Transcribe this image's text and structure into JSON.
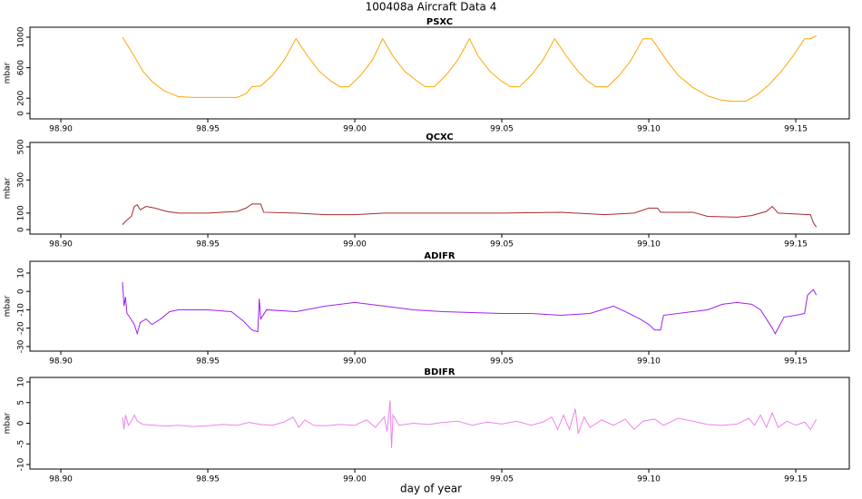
{
  "title": "100408a   Aircraft Data 4",
  "xlabel": "day of year",
  "chart_data": [
    {
      "type": "line",
      "title": "PSXC",
      "ylabel": "mbar",
      "xlim": [
        98.8895,
        99.1682
      ],
      "ylim": [
        -71,
        1131
      ],
      "xticks": [
        {
          "value": 98.9,
          "label": "98.90"
        },
        {
          "value": 98.95,
          "label": "98.95"
        },
        {
          "value": 99.0,
          "label": "99.00"
        },
        {
          "value": 99.05,
          "label": "99.05"
        },
        {
          "value": 99.1,
          "label": "99.10"
        },
        {
          "value": 99.15,
          "label": "99.15"
        }
      ],
      "yticks": [
        0,
        200,
        600,
        1000
      ],
      "series": [
        {
          "color": "#ffa500",
          "x": [
            98.921,
            98.925,
            98.928,
            98.931,
            98.935,
            98.94,
            98.945,
            98.955,
            98.96,
            98.963,
            98.965,
            98.968,
            98.972,
            98.976,
            98.98,
            98.984,
            98.988,
            98.992,
            98.995,
            98.998,
            99.002,
            99.006,
            99.0095,
            99.013,
            99.017,
            99.021,
            99.024,
            99.027,
            99.031,
            99.035,
            99.039,
            99.042,
            99.046,
            99.05,
            99.053,
            99.056,
            99.06,
            99.064,
            99.068,
            99.072,
            99.076,
            99.079,
            99.082,
            99.086,
            99.09,
            99.094,
            99.098,
            99.101,
            99.106,
            99.11,
            99.115,
            99.12,
            99.124,
            99.128,
            99.133,
            99.137,
            99.141,
            99.145,
            99.149,
            99.153,
            99.155,
            99.157
          ],
          "values": [
            1000,
            750,
            550,
            420,
            300,
            220,
            210,
            210,
            210,
            260,
            350,
            360,
            500,
            700,
            980,
            750,
            550,
            420,
            350,
            350,
            500,
            700,
            980,
            750,
            550,
            430,
            350,
            350,
            500,
            700,
            980,
            750,
            550,
            420,
            350,
            350,
            500,
            700,
            980,
            750,
            550,
            430,
            350,
            350,
            500,
            700,
            980,
            980,
            700,
            500,
            340,
            230,
            180,
            160,
            160,
            250,
            380,
            550,
            750,
            980,
            980,
            1020
          ]
        }
      ]
    },
    {
      "type": "line",
      "title": "QCXC",
      "ylabel": "mbar",
      "xlim": [
        98.8895,
        99.1682
      ],
      "ylim": [
        -27,
        527
      ],
      "xticks": [
        {
          "value": 98.9,
          "label": "98.90"
        },
        {
          "value": 98.95,
          "label": "98.95"
        },
        {
          "value": 99.0,
          "label": "99.00"
        },
        {
          "value": 99.05,
          "label": "99.05"
        },
        {
          "value": 99.1,
          "label": "99.10"
        },
        {
          "value": 99.15,
          "label": "99.15"
        }
      ],
      "yticks": [
        0,
        100,
        300,
        500
      ],
      "series": [
        {
          "color": "#a52a2a",
          "x": [
            98.921,
            98.922,
            98.924,
            98.925,
            98.926,
            98.927,
            98.929,
            98.932,
            98.936,
            98.94,
            98.95,
            98.96,
            98.963,
            98.965,
            98.968,
            98.969,
            98.98,
            98.99,
            99.0,
            99.01,
            99.05,
            99.07,
            99.085,
            99.095,
            99.1,
            99.103,
            99.104,
            99.115,
            99.12,
            99.13,
            99.135,
            99.14,
            99.142,
            99.144,
            99.155,
            99.156,
            99.157
          ],
          "values": [
            30,
            50,
            80,
            140,
            150,
            120,
            140,
            130,
            110,
            100,
            100,
            110,
            130,
            155,
            155,
            105,
            100,
            90,
            90,
            100,
            100,
            105,
            90,
            100,
            130,
            130,
            105,
            105,
            80,
            75,
            85,
            110,
            140,
            100,
            90,
            40,
            15
          ]
        }
      ]
    },
    {
      "type": "line",
      "title": "ADIFR",
      "ylabel": "mbar",
      "xlim": [
        98.8895,
        99.1682
      ],
      "ylim": [
        -32.5,
        16.4
      ],
      "xticks": [
        {
          "value": 98.9,
          "label": "98.90"
        },
        {
          "value": 98.95,
          "label": "98.95"
        },
        {
          "value": 99.0,
          "label": "99.00"
        },
        {
          "value": 99.05,
          "label": "99.05"
        },
        {
          "value": 99.1,
          "label": "99.10"
        },
        {
          "value": 99.15,
          "label": "99.15"
        }
      ],
      "yticks": [
        -30,
        -20,
        -10,
        0,
        10
      ],
      "series": [
        {
          "color": "#a020f0",
          "x": [
            98.921,
            98.9215,
            98.922,
            98.9225,
            98.923,
            98.925,
            98.926,
            98.927,
            98.929,
            98.931,
            98.934,
            98.937,
            98.94,
            98.95,
            98.958,
            98.962,
            98.965,
            98.967,
            98.9675,
            98.968,
            98.97,
            98.98,
            98.99,
            99.0,
            99.01,
            99.02,
            99.03,
            99.05,
            99.06,
            99.07,
            99.08,
            99.088,
            99.092,
            99.097,
            99.1,
            99.102,
            99.104,
            99.105,
            99.115,
            99.12,
            99.125,
            99.13,
            99.135,
            99.138,
            99.14,
            99.142,
            99.143,
            99.146,
            99.15,
            99.153,
            99.154,
            99.156,
            99.157
          ],
          "values": [
            5,
            -8,
            -3,
            -12,
            -13,
            -18,
            -23,
            -17,
            -15,
            -18,
            -15,
            -11,
            -10,
            -10,
            -11,
            -16,
            -21,
            -22,
            -4,
            -15,
            -10,
            -11,
            -8,
            -6,
            -8,
            -10,
            -11,
            -12,
            -12,
            -13,
            -12,
            -8,
            -11,
            -15,
            -18,
            -21,
            -21,
            -13,
            -11,
            -10,
            -7,
            -6,
            -7,
            -10,
            -15,
            -20,
            -23,
            -14,
            -13,
            -12,
            -2,
            1,
            -2
          ]
        }
      ]
    },
    {
      "type": "line",
      "title": "BDIFR",
      "ylabel": "mbar",
      "xlim": [
        98.8895,
        99.1682
      ],
      "ylim": [
        -11.1,
        11.1
      ],
      "xticks": [
        {
          "value": 98.9,
          "label": "98.90"
        },
        {
          "value": 98.95,
          "label": "98.95"
        },
        {
          "value": 99.0,
          "label": "99.00"
        },
        {
          "value": 99.05,
          "label": "99.05"
        },
        {
          "value": 99.1,
          "label": "99.10"
        },
        {
          "value": 99.15,
          "label": "99.15"
        }
      ],
      "yticks": [
        -10,
        -5,
        0,
        5,
        10
      ],
      "series": [
        {
          "color": "#ee82ee",
          "x": [
            98.921,
            98.9215,
            98.922,
            98.923,
            98.924,
            98.925,
            98.926,
            98.928,
            98.932,
            98.936,
            98.94,
            98.945,
            98.95,
            98.955,
            98.96,
            98.964,
            98.968,
            98.972,
            98.976,
            98.979,
            98.981,
            98.983,
            98.986,
            98.99,
            98.995,
            99.0,
            99.004,
            99.007,
            99.01,
            99.011,
            99.012,
            99.0125,
            99.013,
            99.015,
            99.02,
            99.025,
            99.03,
            99.035,
            99.04,
            99.045,
            99.05,
            99.055,
            99.06,
            99.064,
            99.067,
            99.069,
            99.071,
            99.073,
            99.075,
            99.076,
            99.078,
            99.08,
            99.084,
            99.088,
            99.092,
            99.095,
            99.098,
            99.102,
            99.105,
            99.11,
            99.115,
            99.12,
            99.125,
            99.13,
            99.134,
            99.136,
            99.138,
            99.14,
            99.142,
            99.144,
            99.147,
            99.15,
            99.153,
            99.155,
            99.157
          ],
          "values": [
            1.5,
            -1.5,
            2,
            -0.5,
            0.5,
            2,
            0.5,
            -0.3,
            -0.5,
            -0.7,
            -0.5,
            -0.8,
            -0.6,
            -0.3,
            -0.5,
            0.2,
            -0.3,
            -0.5,
            0.3,
            1.5,
            -1,
            0.8,
            -0.5,
            -0.6,
            -0.3,
            -0.5,
            0.8,
            -1,
            1.5,
            -2,
            5.5,
            -6,
            2,
            -0.5,
            0,
            -0.3,
            0.2,
            0.5,
            -0.5,
            0.3,
            -0.2,
            0.5,
            -0.5,
            0.3,
            1.5,
            -1.5,
            2,
            -1.5,
            3.5,
            -2.5,
            1.5,
            -1,
            0.8,
            -0.5,
            1,
            -1.5,
            0.5,
            1,
            -0.5,
            1.2,
            0.5,
            -0.3,
            -0.5,
            -0.2,
            1.2,
            -0.5,
            2,
            -1,
            2.5,
            -1,
            0.5,
            -0.5,
            0.3,
            -1.5,
            1
          ]
        }
      ]
    }
  ]
}
